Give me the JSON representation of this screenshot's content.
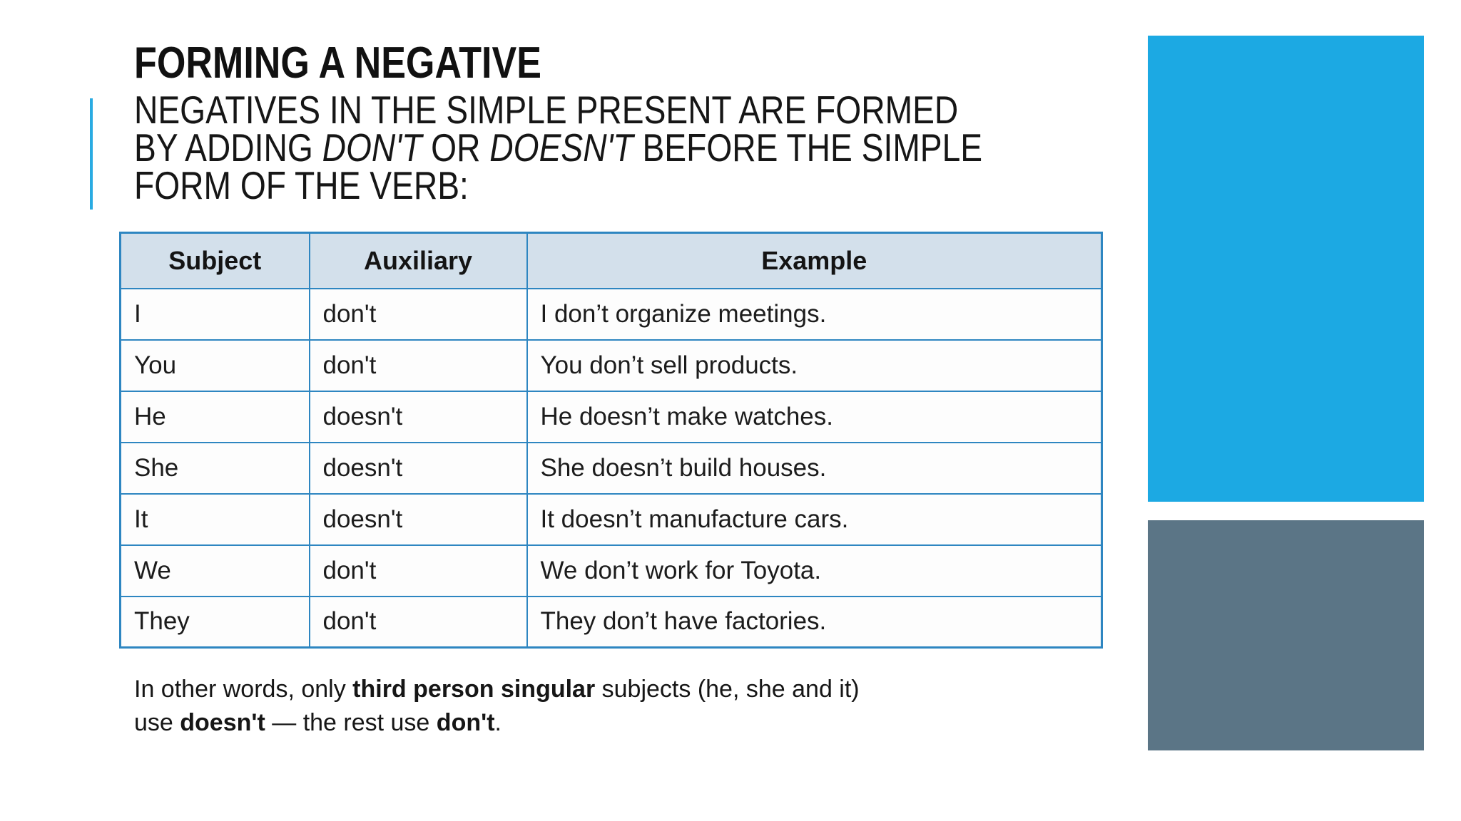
{
  "slide": {
    "title": "FORMING A NEGATIVE",
    "subtitle": {
      "line1": "NEGATIVES IN THE SIMPLE PRESENT ARE FORMED",
      "line2_pre": "BY ADDING ",
      "line2_italic1": "DON'T",
      "line2_mid": " OR ",
      "line2_italic2": "DOESN'T",
      "line2_post": " BEFORE THE SIMPLE",
      "line3": "FORM OF THE VERB:"
    },
    "table": {
      "headers": [
        "Subject",
        "Auxiliary",
        "Example"
      ],
      "rows": [
        {
          "subject": "I",
          "auxiliary": "don't",
          "example": "I don’t organize meetings."
        },
        {
          "subject": "You",
          "auxiliary": "don't",
          "example": "You don’t sell products."
        },
        {
          "subject": "He",
          "auxiliary": "doesn't",
          "example": "He doesn’t make watches."
        },
        {
          "subject": "She",
          "auxiliary": "doesn't",
          "example": "She doesn’t build houses."
        },
        {
          "subject": "It",
          "auxiliary": "doesn't",
          "example": "It doesn’t manufacture cars."
        },
        {
          "subject": "We",
          "auxiliary": "don't",
          "example": "We don’t work for Toyota."
        },
        {
          "subject": "They",
          "auxiliary": "don't",
          "example": "They don’t have factories."
        }
      ]
    },
    "note": {
      "line1_pre": "In other words, only ",
      "line1_bold": "third person singular",
      "line1_post": " subjects (he, she and it)",
      "line2_pre": "use ",
      "line2_bold1": "doesn't",
      "line2_mid": " — the rest use ",
      "line2_bold2": "don't",
      "line2_post": "."
    },
    "colors": {
      "accent_blue": "#29ABE2",
      "table_border": "#2E86C1",
      "header_bg": "#D3E0EB",
      "rect_blue": "#1CA9E3",
      "rect_gray": "#5B7586"
    }
  }
}
